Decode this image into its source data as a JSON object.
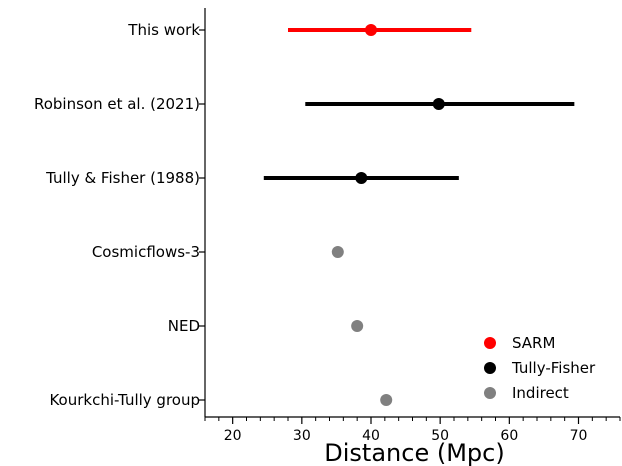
{
  "chart_data": {
    "type": "scatter",
    "orientation": "horizontal-errorbar",
    "xlabel": "Distance (Mpc)",
    "ylabel": "",
    "title": "",
    "xlim": [
      16,
      76
    ],
    "xticks_major": [
      20,
      30,
      40,
      50,
      60,
      70
    ],
    "xticks_minor_step": 2,
    "grid": false,
    "legend_position": "lower-right",
    "categories": [
      "This work",
      "Robinson et al. (2021)",
      "Tully & Fisher (1988)",
      "Cosmicflows-3",
      "NED",
      "Kourkchi-Tully group"
    ],
    "points": [
      {
        "label": "This work",
        "x": 40.0,
        "xerr_low": 28.0,
        "xerr_high": 54.5,
        "series": "SARM"
      },
      {
        "label": "Robinson et al. (2021)",
        "x": 49.8,
        "xerr_low": 30.5,
        "xerr_high": 69.4,
        "series": "Tully-Fisher"
      },
      {
        "label": "Tully & Fisher (1988)",
        "x": 38.6,
        "xerr_low": 24.5,
        "xerr_high": 52.7,
        "series": "Tully-Fisher"
      },
      {
        "label": "Cosmicflows-3",
        "x": 35.2,
        "xerr_low": null,
        "xerr_high": null,
        "series": "Indirect"
      },
      {
        "label": "NED",
        "x": 38.0,
        "xerr_low": null,
        "xerr_high": null,
        "series": "Indirect"
      },
      {
        "label": "Kourkchi-Tully group",
        "x": 42.2,
        "xerr_low": null,
        "xerr_high": null,
        "series": "Indirect"
      }
    ],
    "series": [
      {
        "name": "SARM",
        "color": "#ff0000"
      },
      {
        "name": "Tully-Fisher",
        "color": "#000000"
      },
      {
        "name": "Indirect",
        "color": "#808080"
      }
    ]
  }
}
